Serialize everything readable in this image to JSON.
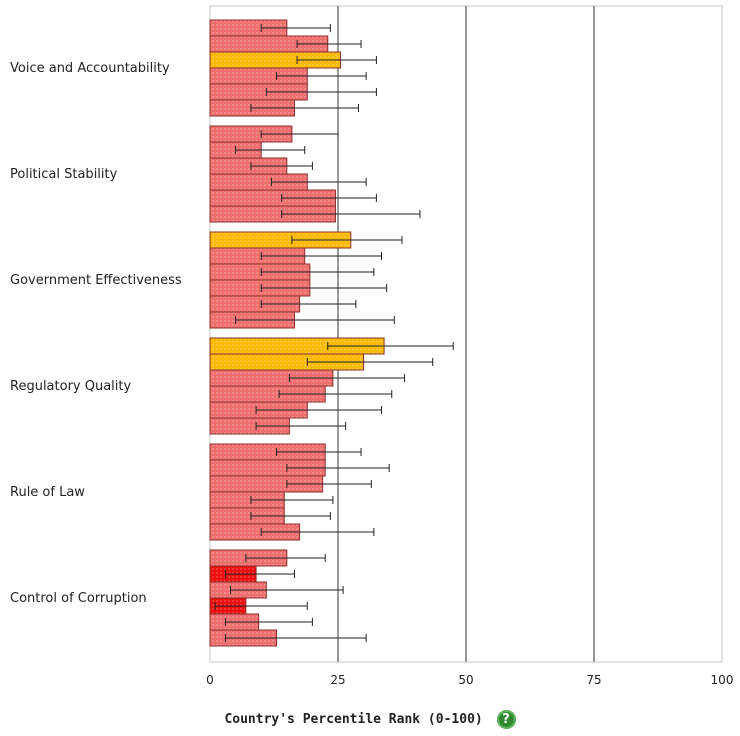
{
  "chart_data": {
    "type": "bar",
    "orientation": "horizontal",
    "xlabel": "Country's Percentile Rank (0-100)",
    "xlim": [
      0,
      100
    ],
    "xticks": [
      0,
      25,
      50,
      75,
      100
    ],
    "grid": "vertical lines at 25, 50, 75",
    "categories": [
      "Voice and Accountability",
      "Political Stability",
      "Government Effectiveness",
      "Regulatory Quality",
      "Rule of Law",
      "Control of Corruption"
    ],
    "groups": [
      {
        "name": "Voice and Accountability",
        "bars": [
          {
            "value": 15,
            "low": 10,
            "high": 23.5,
            "tier": "normal"
          },
          {
            "value": 23,
            "low": 17,
            "high": 29.5,
            "tier": "normal"
          },
          {
            "value": 25.5,
            "low": 17,
            "high": 32.5,
            "tier": "highlight"
          },
          {
            "value": 19,
            "low": 13,
            "high": 30.5,
            "tier": "normal"
          },
          {
            "value": 19,
            "low": 11,
            "high": 32.5,
            "tier": "normal"
          },
          {
            "value": 16.5,
            "low": 8,
            "high": 29,
            "tier": "normal"
          }
        ]
      },
      {
        "name": "Political Stability",
        "bars": [
          {
            "value": 16,
            "low": 10,
            "high": 25,
            "tier": "normal"
          },
          {
            "value": 10,
            "low": 5,
            "high": 18.5,
            "tier": "normal"
          },
          {
            "value": 15,
            "low": 8,
            "high": 20,
            "tier": "normal"
          },
          {
            "value": 19,
            "low": 12,
            "high": 30.5,
            "tier": "normal"
          },
          {
            "value": 24.5,
            "low": 14,
            "high": 32.5,
            "tier": "normal"
          },
          {
            "value": 24.5,
            "low": 14,
            "high": 41,
            "tier": "normal"
          }
        ]
      },
      {
        "name": "Government Effectiveness",
        "bars": [
          {
            "value": 27.5,
            "low": 16,
            "high": 37.5,
            "tier": "highlight"
          },
          {
            "value": 18.5,
            "low": 10,
            "high": 33.5,
            "tier": "normal"
          },
          {
            "value": 19.5,
            "low": 10,
            "high": 32,
            "tier": "normal"
          },
          {
            "value": 19.5,
            "low": 10,
            "high": 34.5,
            "tier": "normal"
          },
          {
            "value": 17.5,
            "low": 10,
            "high": 28.5,
            "tier": "normal"
          },
          {
            "value": 16.5,
            "low": 5,
            "high": 36,
            "tier": "normal"
          }
        ]
      },
      {
        "name": "Regulatory Quality",
        "bars": [
          {
            "value": 34,
            "low": 23,
            "high": 47.5,
            "tier": "highlight"
          },
          {
            "value": 30,
            "low": 19,
            "high": 43.5,
            "tier": "highlight"
          },
          {
            "value": 24,
            "low": 15.5,
            "high": 38,
            "tier": "normal"
          },
          {
            "value": 22.5,
            "low": 13.5,
            "high": 35.5,
            "tier": "normal"
          },
          {
            "value": 19,
            "low": 9,
            "high": 33.5,
            "tier": "normal"
          },
          {
            "value": 15.5,
            "low": 9,
            "high": 26.5,
            "tier": "normal"
          }
        ]
      },
      {
        "name": "Rule of Law",
        "bars": [
          {
            "value": 22.5,
            "low": 13,
            "high": 29.5,
            "tier": "normal"
          },
          {
            "value": 22.5,
            "low": 15,
            "high": 35,
            "tier": "normal"
          },
          {
            "value": 22,
            "low": 15,
            "high": 31.5,
            "tier": "normal"
          },
          {
            "value": 14.5,
            "low": 8,
            "high": 24,
            "tier": "normal"
          },
          {
            "value": 14.5,
            "low": 8,
            "high": 23.5,
            "tier": "normal"
          },
          {
            "value": 17.5,
            "low": 10,
            "high": 32,
            "tier": "normal"
          }
        ]
      },
      {
        "name": "Control of Corruption",
        "bars": [
          {
            "value": 15,
            "low": 7,
            "high": 22.5,
            "tier": "normal"
          },
          {
            "value": 9,
            "low": 3,
            "high": 16.5,
            "tier": "low"
          },
          {
            "value": 11,
            "low": 4,
            "high": 26,
            "tier": "normal"
          },
          {
            "value": 7,
            "low": 1,
            "high": 19,
            "tier": "low"
          },
          {
            "value": 9.5,
            "low": 3,
            "high": 20,
            "tier": "normal"
          },
          {
            "value": 13,
            "low": 3,
            "high": 30.5,
            "tier": "normal"
          }
        ]
      }
    ],
    "colors": {
      "normal": "#ef6f6f",
      "highlight": "#fcba03",
      "low": "#ee0e0e",
      "bar_outline": "#8b2c2c",
      "error_bar": "#222222",
      "grid": "#333333",
      "frame": "#c7c7c7"
    }
  },
  "help_icon": "help-question-icon",
  "help_glyph": "?"
}
